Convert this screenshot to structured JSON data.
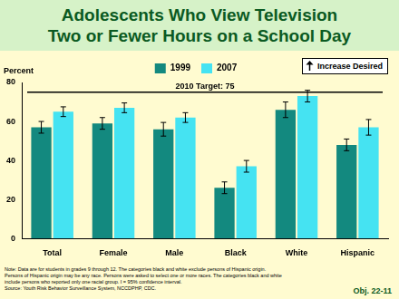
{
  "chart_data": {
    "type": "bar",
    "title": [
      "Adolescents Who View Television",
      "Two or Fewer Hours on a School Day"
    ],
    "y_label": "Percent",
    "categories": [
      "Total",
      "Female",
      "Male",
      "Black",
      "White",
      "Hispanic"
    ],
    "series": [
      {
        "name": "1999",
        "color": "#13897f",
        "values": [
          57,
          59,
          56,
          26,
          66,
          48
        ],
        "errors": [
          3,
          3,
          3.5,
          3,
          4,
          3
        ]
      },
      {
        "name": "2007",
        "color": "#45e3f2",
        "values": [
          65,
          67,
          62,
          37,
          73,
          57
        ],
        "errors": [
          2.5,
          2.5,
          2.5,
          3,
          3,
          4
        ]
      }
    ],
    "annotations": [
      {
        "text": "2010 Target: 75",
        "y": 75
      },
      {
        "text": "Increase Desired"
      }
    ],
    "ylim": [
      0,
      80
    ],
    "yticks": [
      0,
      20,
      40,
      60,
      80
    ],
    "grid": false,
    "legend": "top"
  },
  "footer": {
    "notes": [
      "Note: Data are for students in grades 9 through 12. The categories black and white exclude persons of Hispanic origin.",
      "Persons of Hispanic origin may be any race. Persons were asked to select one or more races. The categories black and white",
      "include persons who reported only one racial group. I = 95% confidence interval.",
      "Source: Youth Risk Behavior Surveillance System, NCCDPHP, CDC."
    ],
    "objective": "Obj. 22-11"
  }
}
